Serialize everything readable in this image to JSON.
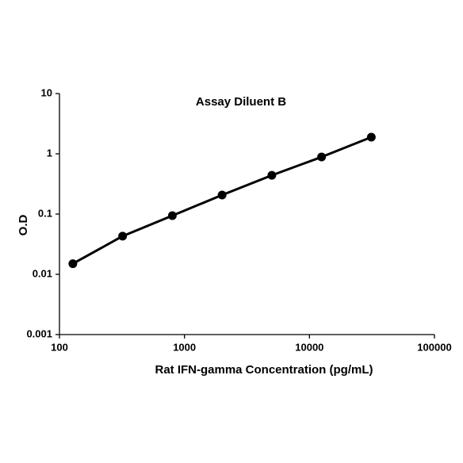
{
  "chart_data": {
    "type": "line",
    "title": "Assay Diluent B",
    "x_label": "Rat IFN-gamma Concentration (pg/mL)",
    "y_label": "O.D",
    "x": [
      128,
      320,
      800,
      2000,
      5000,
      12500,
      31250
    ],
    "values": [
      0.015,
      0.043,
      0.094,
      0.207,
      0.44,
      0.885,
      1.89
    ],
    "color": "#000000",
    "x_log": true,
    "y_log": true,
    "xlim": [
      100,
      100000
    ],
    "xticks": [
      100,
      1000,
      10000,
      100000
    ],
    "ylim": [
      0.001,
      10
    ],
    "yticks": [
      0.001,
      0.01,
      0.1,
      1,
      10
    ],
    "grid": false
  }
}
